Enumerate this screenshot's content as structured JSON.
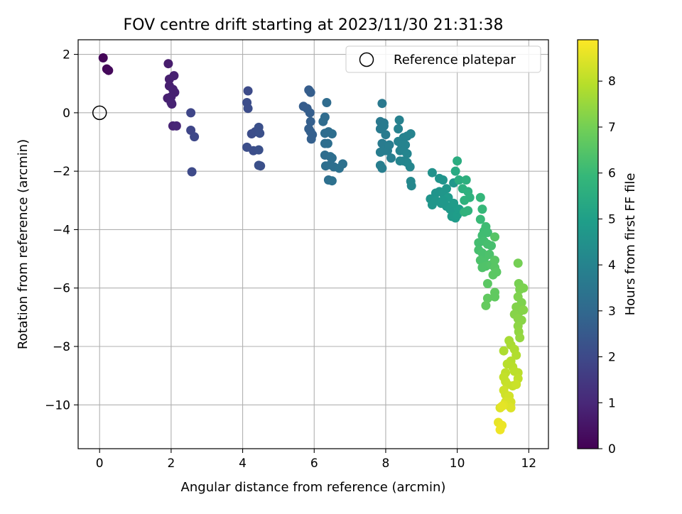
{
  "chart_data": {
    "type": "scatter",
    "title": "FOV centre drift starting at 2023/11/30 21:31:38",
    "xlabel": "Angular distance from reference (arcmin)",
    "ylabel": "Rotation from reference (arcmin)",
    "xlim": [
      -0.6,
      12.55
    ],
    "ylim": [
      -11.5,
      2.5
    ],
    "x_ticks": [
      0,
      2,
      4,
      6,
      8,
      10,
      12
    ],
    "x_tick_labels": [
      "0",
      "2",
      "4",
      "6",
      "8",
      "10",
      "12"
    ],
    "y_ticks": [
      2,
      0,
      -2,
      -4,
      -6,
      -8,
      -10
    ],
    "y_tick_labels": [
      "2",
      "0",
      "−2",
      "−4",
      "−6",
      "−8",
      "−10"
    ],
    "grid": true,
    "legend": {
      "position": "upper right",
      "entries": [
        "Reference platepar"
      ]
    },
    "reference_point": {
      "name": "Reference platepar",
      "x": 0,
      "y": 0
    },
    "colorbar": {
      "label": "Hours from first FF file",
      "min": 0,
      "max": 8.9,
      "ticks": [
        0,
        1,
        2,
        3,
        4,
        5,
        6,
        7,
        8
      ],
      "tick_labels": [
        "0",
        "1",
        "2",
        "3",
        "4",
        "5",
        "6",
        "7",
        "8"
      ],
      "colormap": "viridis"
    },
    "colormap_stops": [
      "#440154",
      "#482878",
      "#3e4989",
      "#31688e",
      "#26828e",
      "#1f9e89",
      "#35b779",
      "#6ece58",
      "#b5de2b",
      "#fde725"
    ],
    "points": [
      [
        0.1,
        1.88,
        0.1
      ],
      [
        0.2,
        1.5,
        0.15
      ],
      [
        0.25,
        1.45,
        0.2
      ],
      [
        1.92,
        1.68,
        0.7
      ],
      [
        1.95,
        1.15,
        0.75
      ],
      [
        2.08,
        1.27,
        0.8
      ],
      [
        1.95,
        0.92,
        0.75
      ],
      [
        2.05,
        0.8,
        0.8
      ],
      [
        2.1,
        0.7,
        0.8
      ],
      [
        1.9,
        0.5,
        0.75
      ],
      [
        2.0,
        0.55,
        0.8
      ],
      [
        2.02,
        0.3,
        0.85
      ],
      [
        2.0,
        0.35,
        0.85
      ],
      [
        2.05,
        -0.45,
        0.9
      ],
      [
        2.15,
        -0.45,
        0.95
      ],
      [
        2.55,
        0.0,
        1.9
      ],
      [
        2.55,
        -0.6,
        1.9
      ],
      [
        2.65,
        -0.82,
        1.95
      ],
      [
        2.58,
        -2.02,
        2.0
      ],
      [
        4.15,
        0.75,
        2.05
      ],
      [
        4.12,
        0.35,
        2.1
      ],
      [
        4.15,
        0.15,
        2.1
      ],
      [
        4.12,
        -1.18,
        2.15
      ],
      [
        4.25,
        -0.72,
        2.1
      ],
      [
        4.35,
        -0.65,
        2.15
      ],
      [
        4.3,
        -1.3,
        2.15
      ],
      [
        4.45,
        -0.5,
        2.2
      ],
      [
        4.48,
        -0.7,
        2.2
      ],
      [
        4.45,
        -1.27,
        2.2
      ],
      [
        4.45,
        -1.8,
        2.2
      ],
      [
        4.5,
        -1.82,
        2.2
      ],
      [
        5.7,
        0.22,
        2.6
      ],
      [
        5.8,
        0.15,
        2.6
      ],
      [
        5.85,
        0.78,
        2.6
      ],
      [
        5.9,
        0.7,
        2.65
      ],
      [
        5.88,
        0.0,
        2.65
      ],
      [
        5.9,
        -0.3,
        2.7
      ],
      [
        5.85,
        -0.55,
        2.7
      ],
      [
        5.9,
        -0.65,
        2.7
      ],
      [
        5.95,
        -0.75,
        2.7
      ],
      [
        5.92,
        -0.9,
        2.7
      ],
      [
        6.35,
        0.35,
        3.1
      ],
      [
        6.3,
        -0.15,
        3.1
      ],
      [
        6.25,
        -0.3,
        3.1
      ],
      [
        6.3,
        -0.7,
        3.15
      ],
      [
        6.4,
        -0.65,
        3.15
      ],
      [
        6.5,
        -0.72,
        3.2
      ],
      [
        6.3,
        -1.05,
        3.15
      ],
      [
        6.38,
        -1.05,
        3.2
      ],
      [
        6.3,
        -1.45,
        3.15
      ],
      [
        6.45,
        -1.5,
        3.2
      ],
      [
        6.5,
        -1.55,
        3.2
      ],
      [
        6.32,
        -1.82,
        3.2
      ],
      [
        6.45,
        -1.78,
        3.25
      ],
      [
        6.55,
        -1.85,
        3.25
      ],
      [
        6.7,
        -1.9,
        3.3
      ],
      [
        6.8,
        -1.75,
        3.3
      ],
      [
        6.4,
        -2.3,
        3.25
      ],
      [
        6.5,
        -2.33,
        3.3
      ],
      [
        7.9,
        0.32,
        3.6
      ],
      [
        7.85,
        -0.3,
        3.6
      ],
      [
        7.95,
        -0.35,
        3.6
      ],
      [
        7.85,
        -0.55,
        3.65
      ],
      [
        7.95,
        -0.45,
        3.65
      ],
      [
        8.0,
        -0.75,
        3.7
      ],
      [
        7.9,
        -1.05,
        3.7
      ],
      [
        7.95,
        -1.1,
        3.7
      ],
      [
        7.85,
        -1.35,
        3.75
      ],
      [
        7.95,
        -1.3,
        3.75
      ],
      [
        8.05,
        -1.3,
        3.75
      ],
      [
        8.1,
        -1.1,
        3.75
      ],
      [
        7.85,
        -1.8,
        3.8
      ],
      [
        7.9,
        -1.9,
        3.8
      ],
      [
        8.15,
        -1.55,
        3.8
      ],
      [
        8.38,
        -0.25,
        3.9
      ],
      [
        8.35,
        -0.55,
        3.9
      ],
      [
        8.5,
        -0.85,
        3.95
      ],
      [
        8.6,
        -0.8,
        3.95
      ],
      [
        8.7,
        -0.72,
        4.0
      ],
      [
        8.35,
        -0.98,
        3.95
      ],
      [
        8.45,
        -1.1,
        4.0
      ],
      [
        8.55,
        -1.1,
        4.0
      ],
      [
        8.4,
        -1.3,
        4.0
      ],
      [
        8.5,
        -1.3,
        4.0
      ],
      [
        8.6,
        -1.4,
        4.05
      ],
      [
        8.5,
        -1.65,
        4.05
      ],
      [
        8.6,
        -1.7,
        4.1
      ],
      [
        8.68,
        -1.85,
        4.1
      ],
      [
        8.4,
        -1.65,
        4.05
      ],
      [
        8.7,
        -2.35,
        4.15
      ],
      [
        8.72,
        -2.5,
        4.15
      ],
      [
        9.3,
        -2.05,
        4.5
      ],
      [
        9.5,
        -2.25,
        4.6
      ],
      [
        9.6,
        -2.3,
        4.6
      ],
      [
        9.7,
        -2.6,
        4.7
      ],
      [
        9.9,
        -2.4,
        4.7
      ],
      [
        9.4,
        -2.75,
        4.6
      ],
      [
        9.5,
        -2.7,
        4.6
      ],
      [
        9.6,
        -2.75,
        4.65
      ],
      [
        9.25,
        -2.95,
        4.6
      ],
      [
        9.3,
        -3.15,
        4.65
      ],
      [
        9.4,
        -3.0,
        4.65
      ],
      [
        9.55,
        -3.1,
        4.7
      ],
      [
        9.7,
        -3.2,
        4.75
      ],
      [
        9.8,
        -3.3,
        4.8
      ],
      [
        9.9,
        -3.4,
        4.8
      ],
      [
        9.85,
        -3.55,
        4.85
      ],
      [
        9.95,
        -3.6,
        4.85
      ],
      [
        10.0,
        -3.5,
        4.9
      ],
      [
        10.05,
        -3.3,
        4.9
      ],
      [
        9.9,
        -3.1,
        4.85
      ],
      [
        9.75,
        -2.9,
        4.8
      ],
      [
        9.6,
        -3.0,
        4.75
      ],
      [
        10.0,
        -1.65,
        5.5
      ],
      [
        9.95,
        -2.0,
        5.4
      ],
      [
        10.05,
        -2.3,
        5.5
      ],
      [
        10.25,
        -2.3,
        5.6
      ],
      [
        10.15,
        -2.6,
        5.6
      ],
      [
        10.3,
        -2.7,
        5.65
      ],
      [
        10.35,
        -2.9,
        5.7
      ],
      [
        10.2,
        -3.0,
        5.7
      ],
      [
        10.3,
        -3.35,
        5.75
      ],
      [
        10.2,
        -3.4,
        5.75
      ],
      [
        10.65,
        -2.9,
        5.9
      ],
      [
        10.7,
        -3.3,
        5.95
      ],
      [
        10.65,
        -3.65,
        6.0
      ],
      [
        10.8,
        -3.9,
        6.1
      ],
      [
        10.75,
        -4.05,
        6.1
      ],
      [
        10.7,
        -4.2,
        6.15
      ],
      [
        10.85,
        -4.1,
        6.15
      ],
      [
        10.6,
        -4.45,
        6.2
      ],
      [
        10.75,
        -4.4,
        6.2
      ],
      [
        10.85,
        -4.5,
        6.25
      ],
      [
        10.95,
        -4.55,
        6.25
      ],
      [
        10.6,
        -4.7,
        6.25
      ],
      [
        10.7,
        -4.8,
        6.3
      ],
      [
        10.8,
        -4.9,
        6.3
      ],
      [
        10.65,
        -5.05,
        6.35
      ],
      [
        10.75,
        -5.1,
        6.35
      ],
      [
        10.9,
        -4.85,
        6.35
      ],
      [
        10.7,
        -5.3,
        6.4
      ],
      [
        10.8,
        -5.25,
        6.4
      ],
      [
        10.95,
        -5.2,
        6.45
      ],
      [
        11.05,
        -4.25,
        6.5
      ],
      [
        11.05,
        -5.05,
        6.55
      ],
      [
        11.05,
        -5.3,
        6.55
      ],
      [
        11.0,
        -5.55,
        6.6
      ],
      [
        11.1,
        -5.45,
        6.6
      ],
      [
        10.85,
        -5.85,
        6.6
      ],
      [
        11.05,
        -6.15,
        6.7
      ],
      [
        11.05,
        -6.3,
        6.7
      ],
      [
        10.85,
        -6.35,
        6.7
      ],
      [
        10.8,
        -6.6,
        6.75
      ],
      [
        11.7,
        -5.15,
        7.0
      ],
      [
        11.72,
        -5.85,
        7.05
      ],
      [
        11.75,
        -6.05,
        7.1
      ],
      [
        11.85,
        -6.0,
        7.1
      ],
      [
        11.7,
        -6.3,
        7.15
      ],
      [
        11.8,
        -6.5,
        7.15
      ],
      [
        11.65,
        -6.65,
        7.2
      ],
      [
        11.75,
        -6.8,
        7.2
      ],
      [
        11.85,
        -6.75,
        7.25
      ],
      [
        11.6,
        -6.9,
        7.25
      ],
      [
        11.7,
        -7.05,
        7.3
      ],
      [
        11.8,
        -7.1,
        7.3
      ],
      [
        11.7,
        -7.3,
        7.35
      ],
      [
        11.72,
        -7.5,
        7.4
      ],
      [
        11.75,
        -7.7,
        7.45
      ],
      [
        11.45,
        -7.8,
        7.7
      ],
      [
        11.5,
        -7.95,
        7.75
      ],
      [
        11.3,
        -8.15,
        7.8
      ],
      [
        11.6,
        -8.1,
        7.8
      ],
      [
        11.65,
        -8.3,
        7.85
      ],
      [
        11.5,
        -8.5,
        7.9
      ],
      [
        11.4,
        -8.6,
        7.95
      ],
      [
        11.55,
        -8.7,
        7.95
      ],
      [
        11.6,
        -8.85,
        8.0
      ],
      [
        11.7,
        -8.9,
        8.0
      ],
      [
        11.7,
        -9.1,
        8.05
      ],
      [
        11.35,
        -8.9,
        8.05
      ],
      [
        11.3,
        -9.05,
        8.1
      ],
      [
        11.35,
        -9.2,
        8.1
      ],
      [
        11.4,
        -9.3,
        8.15
      ],
      [
        11.55,
        -9.35,
        8.15
      ],
      [
        11.65,
        -9.3,
        8.2
      ],
      [
        11.3,
        -9.5,
        8.25
      ],
      [
        11.35,
        -9.65,
        8.25
      ],
      [
        11.45,
        -9.7,
        8.3
      ],
      [
        11.5,
        -9.9,
        8.35
      ],
      [
        11.35,
        -9.9,
        8.35
      ],
      [
        11.4,
        -10.0,
        8.4
      ],
      [
        11.5,
        -10.1,
        8.45
      ],
      [
        11.2,
        -10.1,
        8.45
      ],
      [
        11.3,
        -10.0,
        8.5
      ],
      [
        11.15,
        -10.6,
        8.6
      ],
      [
        11.25,
        -10.7,
        8.65
      ],
      [
        11.2,
        -10.85,
        8.7
      ],
      [
        11.25,
        -10.05,
        8.55
      ]
    ]
  }
}
